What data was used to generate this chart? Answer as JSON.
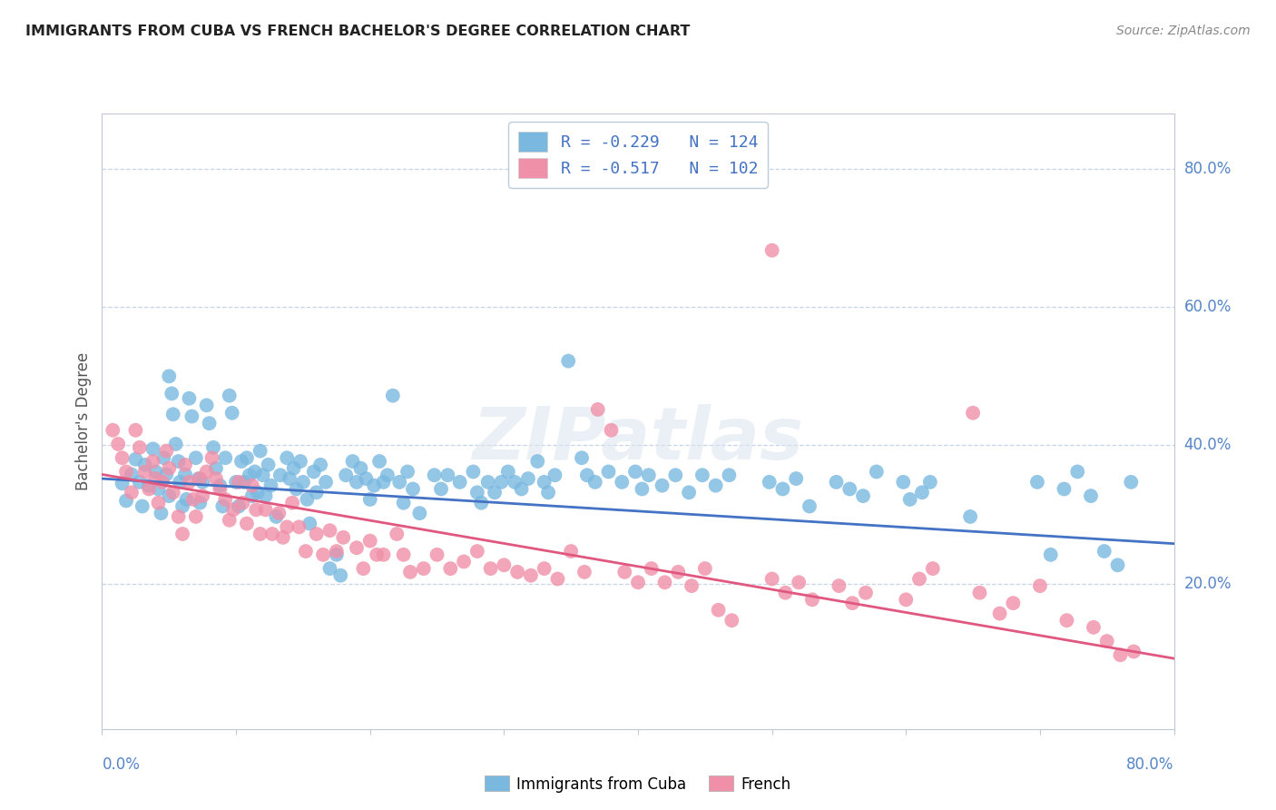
{
  "title": "IMMIGRANTS FROM CUBA VS FRENCH BACHELOR'S DEGREE CORRELATION CHART",
  "source": "Source: ZipAtlas.com",
  "ylabel": "Bachelor's Degree",
  "xlim": [
    0.0,
    0.8
  ],
  "ylim": [
    -0.01,
    0.88
  ],
  "yticks": [
    0.2,
    0.4,
    0.6,
    0.8
  ],
  "ytick_labels": [
    "20.0%",
    "40.0%",
    "60.0%",
    "80.0%"
  ],
  "xticks": [
    0.0,
    0.1,
    0.2,
    0.3,
    0.4,
    0.5,
    0.6,
    0.7,
    0.8
  ],
  "watermark": "ZIPatlas",
  "legend_line1": "R = -0.229   N = 124",
  "legend_line2": "R = -0.517   N = 102",
  "blue_color": "#7ab8e0",
  "pink_color": "#f090a8",
  "blue_line_color": "#4472c4",
  "pink_line_color": "#e05880",
  "tick_color": "#5585c8",
  "legend_text_color": "#4472c4",
  "blue_scatter": [
    [
      0.015,
      0.345
    ],
    [
      0.018,
      0.32
    ],
    [
      0.022,
      0.358
    ],
    [
      0.025,
      0.38
    ],
    [
      0.028,
      0.347
    ],
    [
      0.03,
      0.312
    ],
    [
      0.032,
      0.372
    ],
    [
      0.035,
      0.342
    ],
    [
      0.038,
      0.395
    ],
    [
      0.04,
      0.362
    ],
    [
      0.042,
      0.337
    ],
    [
      0.044,
      0.302
    ],
    [
      0.046,
      0.382
    ],
    [
      0.048,
      0.358
    ],
    [
      0.05,
      0.327
    ],
    [
      0.05,
      0.5
    ],
    [
      0.052,
      0.475
    ],
    [
      0.053,
      0.445
    ],
    [
      0.055,
      0.402
    ],
    [
      0.057,
      0.377
    ],
    [
      0.058,
      0.347
    ],
    [
      0.06,
      0.312
    ],
    [
      0.062,
      0.358
    ],
    [
      0.063,
      0.322
    ],
    [
      0.065,
      0.468
    ],
    [
      0.067,
      0.442
    ],
    [
      0.07,
      0.382
    ],
    [
      0.072,
      0.352
    ],
    [
      0.073,
      0.317
    ],
    [
      0.075,
      0.347
    ],
    [
      0.078,
      0.458
    ],
    [
      0.08,
      0.432
    ],
    [
      0.083,
      0.397
    ],
    [
      0.085,
      0.367
    ],
    [
      0.088,
      0.342
    ],
    [
      0.09,
      0.312
    ],
    [
      0.092,
      0.382
    ],
    [
      0.095,
      0.472
    ],
    [
      0.097,
      0.447
    ],
    [
      0.1,
      0.347
    ],
    [
      0.102,
      0.312
    ],
    [
      0.104,
      0.377
    ],
    [
      0.106,
      0.347
    ],
    [
      0.108,
      0.382
    ],
    [
      0.11,
      0.357
    ],
    [
      0.112,
      0.327
    ],
    [
      0.114,
      0.362
    ],
    [
      0.116,
      0.332
    ],
    [
      0.118,
      0.392
    ],
    [
      0.12,
      0.357
    ],
    [
      0.122,
      0.327
    ],
    [
      0.124,
      0.372
    ],
    [
      0.126,
      0.342
    ],
    [
      0.13,
      0.297
    ],
    [
      0.133,
      0.357
    ],
    [
      0.138,
      0.382
    ],
    [
      0.14,
      0.352
    ],
    [
      0.143,
      0.367
    ],
    [
      0.145,
      0.337
    ],
    [
      0.148,
      0.377
    ],
    [
      0.15,
      0.347
    ],
    [
      0.153,
      0.322
    ],
    [
      0.155,
      0.287
    ],
    [
      0.158,
      0.362
    ],
    [
      0.16,
      0.332
    ],
    [
      0.163,
      0.372
    ],
    [
      0.167,
      0.347
    ],
    [
      0.17,
      0.222
    ],
    [
      0.175,
      0.242
    ],
    [
      0.178,
      0.212
    ],
    [
      0.182,
      0.357
    ],
    [
      0.187,
      0.377
    ],
    [
      0.19,
      0.347
    ],
    [
      0.193,
      0.367
    ],
    [
      0.197,
      0.352
    ],
    [
      0.2,
      0.322
    ],
    [
      0.203,
      0.342
    ],
    [
      0.207,
      0.377
    ],
    [
      0.21,
      0.347
    ],
    [
      0.213,
      0.357
    ],
    [
      0.217,
      0.472
    ],
    [
      0.222,
      0.347
    ],
    [
      0.225,
      0.317
    ],
    [
      0.228,
      0.362
    ],
    [
      0.232,
      0.337
    ],
    [
      0.237,
      0.302
    ],
    [
      0.248,
      0.357
    ],
    [
      0.253,
      0.337
    ],
    [
      0.258,
      0.357
    ],
    [
      0.267,
      0.347
    ],
    [
      0.277,
      0.362
    ],
    [
      0.28,
      0.332
    ],
    [
      0.283,
      0.317
    ],
    [
      0.288,
      0.347
    ],
    [
      0.293,
      0.332
    ],
    [
      0.298,
      0.347
    ],
    [
      0.303,
      0.362
    ],
    [
      0.308,
      0.347
    ],
    [
      0.313,
      0.337
    ],
    [
      0.318,
      0.352
    ],
    [
      0.325,
      0.377
    ],
    [
      0.33,
      0.347
    ],
    [
      0.333,
      0.332
    ],
    [
      0.338,
      0.357
    ],
    [
      0.348,
      0.522
    ],
    [
      0.358,
      0.382
    ],
    [
      0.362,
      0.357
    ],
    [
      0.368,
      0.347
    ],
    [
      0.378,
      0.362
    ],
    [
      0.388,
      0.347
    ],
    [
      0.398,
      0.362
    ],
    [
      0.403,
      0.337
    ],
    [
      0.408,
      0.357
    ],
    [
      0.418,
      0.342
    ],
    [
      0.428,
      0.357
    ],
    [
      0.438,
      0.332
    ],
    [
      0.448,
      0.357
    ],
    [
      0.458,
      0.342
    ],
    [
      0.468,
      0.357
    ],
    [
      0.498,
      0.347
    ],
    [
      0.508,
      0.337
    ],
    [
      0.518,
      0.352
    ],
    [
      0.528,
      0.312
    ],
    [
      0.548,
      0.347
    ],
    [
      0.558,
      0.337
    ],
    [
      0.568,
      0.327
    ],
    [
      0.578,
      0.362
    ],
    [
      0.598,
      0.347
    ],
    [
      0.603,
      0.322
    ],
    [
      0.612,
      0.332
    ],
    [
      0.618,
      0.347
    ],
    [
      0.648,
      0.297
    ],
    [
      0.698,
      0.347
    ],
    [
      0.708,
      0.242
    ],
    [
      0.718,
      0.337
    ],
    [
      0.728,
      0.362
    ],
    [
      0.738,
      0.327
    ],
    [
      0.748,
      0.247
    ],
    [
      0.758,
      0.227
    ],
    [
      0.768,
      0.347
    ]
  ],
  "pink_scatter": [
    [
      0.008,
      0.422
    ],
    [
      0.012,
      0.402
    ],
    [
      0.015,
      0.382
    ],
    [
      0.018,
      0.362
    ],
    [
      0.022,
      0.332
    ],
    [
      0.025,
      0.422
    ],
    [
      0.028,
      0.397
    ],
    [
      0.032,
      0.362
    ],
    [
      0.035,
      0.337
    ],
    [
      0.038,
      0.377
    ],
    [
      0.04,
      0.352
    ],
    [
      0.042,
      0.317
    ],
    [
      0.045,
      0.347
    ],
    [
      0.048,
      0.392
    ],
    [
      0.05,
      0.367
    ],
    [
      0.053,
      0.332
    ],
    [
      0.057,
      0.297
    ],
    [
      0.06,
      0.272
    ],
    [
      0.062,
      0.372
    ],
    [
      0.065,
      0.347
    ],
    [
      0.068,
      0.322
    ],
    [
      0.07,
      0.297
    ],
    [
      0.073,
      0.352
    ],
    [
      0.075,
      0.327
    ],
    [
      0.078,
      0.362
    ],
    [
      0.082,
      0.382
    ],
    [
      0.085,
      0.352
    ],
    [
      0.088,
      0.337
    ],
    [
      0.092,
      0.322
    ],
    [
      0.095,
      0.292
    ],
    [
      0.098,
      0.307
    ],
    [
      0.102,
      0.347
    ],
    [
      0.105,
      0.317
    ],
    [
      0.108,
      0.287
    ],
    [
      0.112,
      0.342
    ],
    [
      0.115,
      0.307
    ],
    [
      0.118,
      0.272
    ],
    [
      0.122,
      0.307
    ],
    [
      0.127,
      0.272
    ],
    [
      0.132,
      0.302
    ],
    [
      0.135,
      0.267
    ],
    [
      0.138,
      0.282
    ],
    [
      0.142,
      0.317
    ],
    [
      0.147,
      0.282
    ],
    [
      0.152,
      0.247
    ],
    [
      0.16,
      0.272
    ],
    [
      0.165,
      0.242
    ],
    [
      0.17,
      0.277
    ],
    [
      0.175,
      0.247
    ],
    [
      0.18,
      0.267
    ],
    [
      0.19,
      0.252
    ],
    [
      0.195,
      0.222
    ],
    [
      0.2,
      0.262
    ],
    [
      0.205,
      0.242
    ],
    [
      0.21,
      0.242
    ],
    [
      0.22,
      0.272
    ],
    [
      0.225,
      0.242
    ],
    [
      0.23,
      0.217
    ],
    [
      0.24,
      0.222
    ],
    [
      0.25,
      0.242
    ],
    [
      0.26,
      0.222
    ],
    [
      0.27,
      0.232
    ],
    [
      0.28,
      0.247
    ],
    [
      0.29,
      0.222
    ],
    [
      0.3,
      0.227
    ],
    [
      0.31,
      0.217
    ],
    [
      0.32,
      0.212
    ],
    [
      0.33,
      0.222
    ],
    [
      0.34,
      0.207
    ],
    [
      0.35,
      0.247
    ],
    [
      0.36,
      0.217
    ],
    [
      0.37,
      0.452
    ],
    [
      0.38,
      0.422
    ],
    [
      0.39,
      0.217
    ],
    [
      0.4,
      0.202
    ],
    [
      0.41,
      0.222
    ],
    [
      0.42,
      0.202
    ],
    [
      0.43,
      0.217
    ],
    [
      0.44,
      0.197
    ],
    [
      0.45,
      0.222
    ],
    [
      0.46,
      0.162
    ],
    [
      0.47,
      0.147
    ],
    [
      0.5,
      0.207
    ],
    [
      0.51,
      0.187
    ],
    [
      0.52,
      0.202
    ],
    [
      0.53,
      0.177
    ],
    [
      0.55,
      0.197
    ],
    [
      0.56,
      0.172
    ],
    [
      0.57,
      0.187
    ],
    [
      0.6,
      0.177
    ],
    [
      0.61,
      0.207
    ],
    [
      0.62,
      0.222
    ],
    [
      0.65,
      0.447
    ],
    [
      0.655,
      0.187
    ],
    [
      0.67,
      0.157
    ],
    [
      0.68,
      0.172
    ],
    [
      0.7,
      0.197
    ],
    [
      0.72,
      0.147
    ],
    [
      0.74,
      0.137
    ],
    [
      0.75,
      0.117
    ],
    [
      0.76,
      0.097
    ],
    [
      0.77,
      0.102
    ],
    [
      0.5,
      0.682
    ]
  ],
  "blue_line": {
    "x0": 0.0,
    "y0": 0.352,
    "x1": 0.8,
    "y1": 0.258
  },
  "pink_line": {
    "x0": 0.0,
    "y0": 0.358,
    "x1": 0.8,
    "y1": 0.092
  },
  "background_color": "#ffffff",
  "grid_color": "#c8d4e8",
  "spine_color": "#c0c8d8"
}
